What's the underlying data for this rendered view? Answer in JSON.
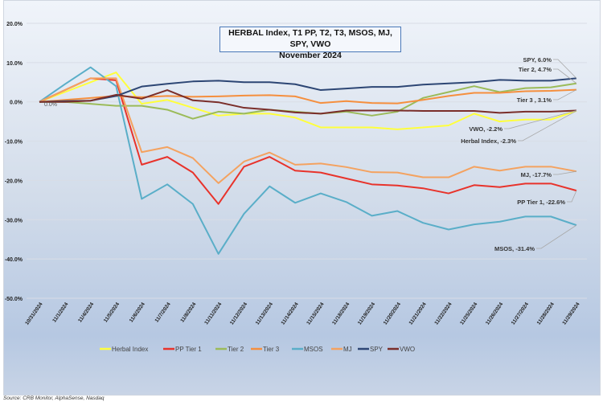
{
  "chart_data": {
    "type": "line",
    "title": "HERBAL Index, T1 PP, T2, T3, MSOS, MJ, SPY, VWO",
    "subtitle": "November 2024",
    "ylim": [
      -50,
      20
    ],
    "yticks": [
      20,
      10,
      0,
      -10,
      -20,
      -30,
      -40,
      -50
    ],
    "ytick_labels": [
      "20.0%",
      "10.0%",
      "0.0%",
      "-10.0%",
      "-20.0%",
      "-30.0%",
      "-40.0%",
      "-50.0%"
    ],
    "grid": true,
    "legend": "bottom",
    "x": [
      "10/31/2024",
      "11/1/2024",
      "11/4/2024",
      "11/5/2024",
      "11/6/2024",
      "11/7/2024",
      "11/8/2024",
      "11/11/2024",
      "11/12/2024",
      "11/13/2024",
      "11/14/2024",
      "11/15/2024",
      "11/18/2024",
      "11/19/2024",
      "11/20/2024",
      "11/21/2024",
      "11/22/2024",
      "11/25/2024",
      "11/26/2024",
      "11/27/2024",
      "11/28/2024",
      "11/29/2024"
    ],
    "start_label": "0.0%",
    "series": [
      {
        "name": "Herbal Index",
        "color": "#ffff3c",
        "end_label": "Herbal Index, -2.3%",
        "values": [
          0,
          2.5,
          5,
          7.5,
          -0.5,
          0.5,
          -1.5,
          -3.5,
          -3,
          -3,
          -4,
          -6.5,
          -6.5,
          -6.5,
          -7,
          -6.5,
          -6,
          -3,
          -5,
          -4.5,
          -4.5,
          -2.3
        ]
      },
      {
        "name": "PP Tier 1",
        "color": "#e8332b",
        "end_label": "PP Tier 1, -22.6%",
        "values": [
          0,
          3,
          6,
          5.5,
          -16,
          -14,
          -18,
          -26,
          -16.5,
          -14,
          -17.5,
          -18,
          -19.5,
          -21,
          -21.3,
          -22,
          -23.3,
          -21.2,
          -21.7,
          -20.8,
          -20.8,
          -22.6
        ]
      },
      {
        "name": "Tier 2",
        "color": "#9bbb59",
        "end_label": "Tier 2, 4.7%",
        "values": [
          0,
          0,
          -0.5,
          -1,
          -1,
          -2,
          -4.3,
          -2.5,
          -3,
          -2,
          -2.5,
          -3,
          -2.5,
          -3.5,
          -2.5,
          1,
          2.5,
          4,
          2.5,
          3.5,
          3.7,
          4.7
        ]
      },
      {
        "name": "Tier 3",
        "color": "#f58f3e",
        "end_label": "Tier 3 , 3.1%",
        "values": [
          0,
          0.5,
          1,
          1.5,
          1.2,
          1.5,
          1.3,
          1.4,
          1.6,
          1.7,
          1.4,
          -0.3,
          0.2,
          -0.3,
          -0.4,
          0.5,
          1.5,
          2.3,
          2.3,
          2.7,
          2.8,
          3.1
        ]
      },
      {
        "name": "MSOS",
        "color": "#5aaec8",
        "end_label": "MSOS, -31.4%",
        "values": [
          0,
          4.5,
          8.8,
          4,
          -24.7,
          -21,
          -26,
          -38.7,
          -28.5,
          -21.5,
          -25.7,
          -23.3,
          -25.5,
          -29,
          -27.8,
          -30.8,
          -32.5,
          -31.2,
          -30.5,
          -29.2,
          -29.2,
          -31.4
        ]
      },
      {
        "name": "MJ",
        "color": "#f4a260",
        "end_label": "MJ, -17.7%",
        "values": [
          0,
          3,
          6,
          6,
          -12.8,
          -11.5,
          -14.3,
          -20.7,
          -15.2,
          -12.9,
          -16,
          -15.7,
          -16.6,
          -17.9,
          -18,
          -19.2,
          -19.2,
          -16.5,
          -17.5,
          -16.5,
          -16.5,
          -17.7
        ]
      },
      {
        "name": "SPY",
        "color": "#2d4674",
        "end_label": "SPY, 6.0%",
        "values": [
          0,
          0.2,
          0.3,
          1.5,
          3.9,
          4.6,
          5.2,
          5.4,
          5,
          5,
          4.5,
          3,
          3.4,
          3.8,
          3.8,
          4.4,
          4.7,
          5,
          5.6,
          5.4,
          5.4,
          6.0
        ]
      },
      {
        "name": "VWO",
        "color": "#7a2e2a",
        "end_label": "VWO, -2.2%",
        "values": [
          0,
          0,
          0.3,
          1.8,
          0.8,
          3,
          0.4,
          -0.1,
          -1.5,
          -2,
          -2.7,
          -3,
          -2.2,
          -2.2,
          -2.2,
          -2.3,
          -2.3,
          -2.3,
          -2.8,
          -2.5,
          -2.5,
          -2.2
        ]
      }
    ]
  },
  "source": "Source: CRB Monitor, AlphaSense, Nasdaq"
}
